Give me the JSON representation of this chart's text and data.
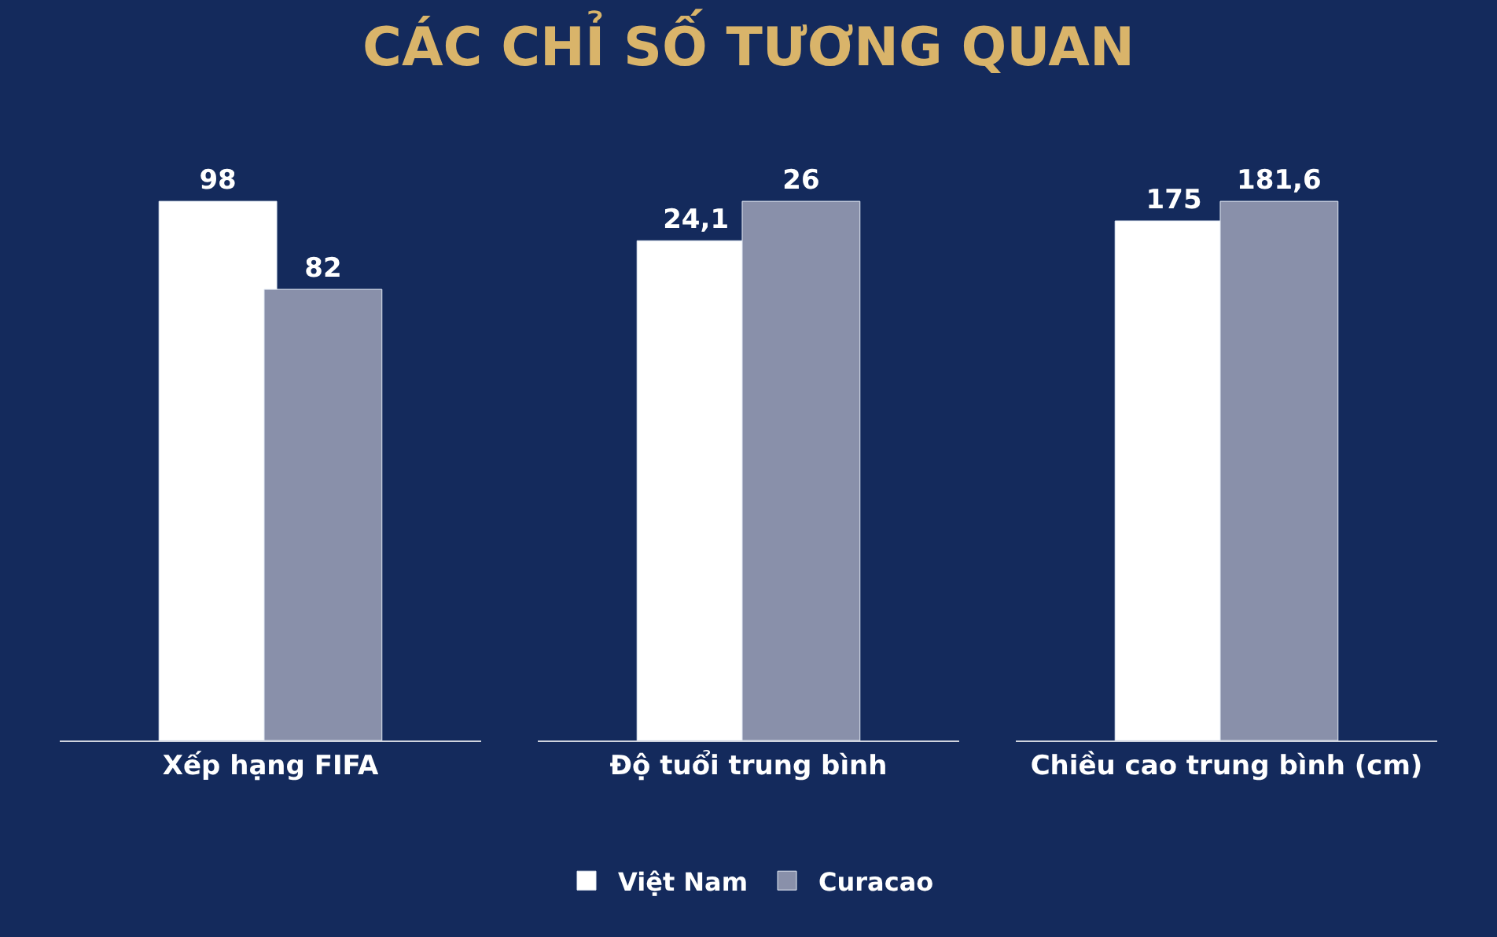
{
  "chart_data": [
    {
      "type": "bar",
      "categories": [
        "Xếp hạng FIFA"
      ],
      "series": [
        {
          "name": "Việt Nam",
          "color": "#ffffff",
          "values": [
            98
          ],
          "value_labels": [
            "98"
          ]
        },
        {
          "name": "Curacao",
          "color": "#8990aa",
          "values": [
            82
          ],
          "value_labels": [
            "82"
          ]
        }
      ],
      "tick_labels": "x",
      "legend": "bottom"
    },
    {
      "type": "bar",
      "title": "CÁC CHỈ SỐ TƯƠNG QUAN",
      "categories": [
        "Độ tuổi trung bình"
      ],
      "series": [
        {
          "color": "#ffffff",
          "values": [
            24.1
          ],
          "value_labels": [
            "24,1"
          ]
        },
        {
          "color": "#8990aa",
          "values": [
            26
          ],
          "value_labels": [
            "26"
          ]
        }
      ],
      "tick_labels": "x"
    },
    {
      "type": "bar",
      "categories": [
        "Chiều cao trung bình (cm)"
      ],
      "series": [
        {
          "color": "#ffffff",
          "values": [
            175
          ],
          "value_labels": [
            "175"
          ]
        },
        {
          "color": "#8990aa",
          "values": [
            181.6
          ],
          "value_labels": [
            "181,6"
          ]
        }
      ],
      "tick_labels": "x"
    }
  ]
}
